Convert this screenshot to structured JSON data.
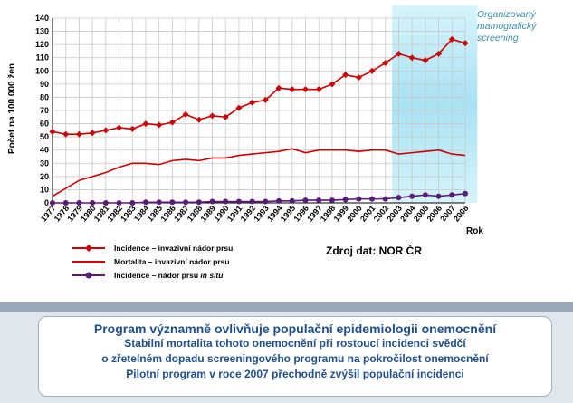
{
  "annotation": "Organizovaný mamografický screening",
  "chart_data": {
    "type": "line",
    "x": [
      1977,
      1978,
      1979,
      1980,
      1981,
      1982,
      1983,
      1984,
      1985,
      1986,
      1987,
      1988,
      1989,
      1990,
      1991,
      1992,
      1993,
      1994,
      1995,
      1996,
      1997,
      1998,
      1999,
      2000,
      2001,
      2002,
      2003,
      2004,
      2005,
      2006,
      2007,
      2008
    ],
    "ylabel": "Počet na 100 000 žen",
    "xlabel": "Rok",
    "ylim": [
      0,
      140
    ],
    "yticks": [
      0,
      10,
      20,
      30,
      40,
      50,
      60,
      70,
      80,
      90,
      100,
      110,
      120,
      130,
      140
    ],
    "grid": true,
    "highlight_range": [
      2002.5,
      2008.5
    ],
    "series": [
      {
        "name": "Incidence – invazivní nádor prsu",
        "color": "#cc0000",
        "marker": "diamond",
        "values": [
          54,
          52,
          52,
          53,
          55,
          57,
          56,
          60,
          59,
          61,
          67,
          63,
          66,
          65,
          72,
          76,
          78,
          87,
          86,
          86,
          86,
          90,
          97,
          95,
          100,
          106,
          113,
          110,
          108,
          113,
          124,
          121
        ]
      },
      {
        "name": "Mortalita – invazivní nádor prsu",
        "color": "#cc0000",
        "marker": "none",
        "values": [
          5,
          11,
          17,
          20,
          23,
          27,
          30,
          30,
          29,
          32,
          33,
          32,
          34,
          34,
          36,
          37,
          38,
          39,
          41,
          38,
          40,
          40,
          40,
          39,
          40,
          40,
          37,
          38,
          39,
          40,
          37,
          36
        ]
      },
      {
        "name": "Incidence – nádor prsu in situ",
        "color": "#5a1a7a",
        "marker": "circle",
        "values": [
          0,
          0,
          0,
          0,
          0,
          0,
          0,
          0.5,
          0.5,
          0.5,
          0.5,
          0.5,
          1,
          1,
          1,
          1,
          1,
          1.5,
          1.5,
          2,
          2,
          2,
          2.5,
          3,
          3,
          3,
          4,
          5,
          6,
          5,
          6,
          7
        ]
      }
    ]
  },
  "legend": {
    "items": [
      "Incidence – invazivní nádor prsu",
      "Mortalita – invazivní nádor prsu"
    ],
    "item3_prefix": "Incidence – nádor prsu ",
    "item3_italic": "in situ"
  },
  "source": "Zdroj dat: NOR ČR",
  "rok_label": "Rok",
  "bottom": {
    "title": "Program významně ovlivňuje populační epidemiologii onemocnění",
    "lines": [
      "Stabilní mortalita tohoto onemocnění při rostoucí incidenci svědčí",
      "o zřetelném dopadu screeningového programu na pokročilost onemocnění",
      "Pilotní program v roce 2007 přechodně zvýšil populační incidenci"
    ]
  },
  "colors": {
    "incidence": "#cc0000",
    "insitu": "#5a1a7a",
    "highlight": "#bfeaf7",
    "grid": "#c8c8c8"
  }
}
